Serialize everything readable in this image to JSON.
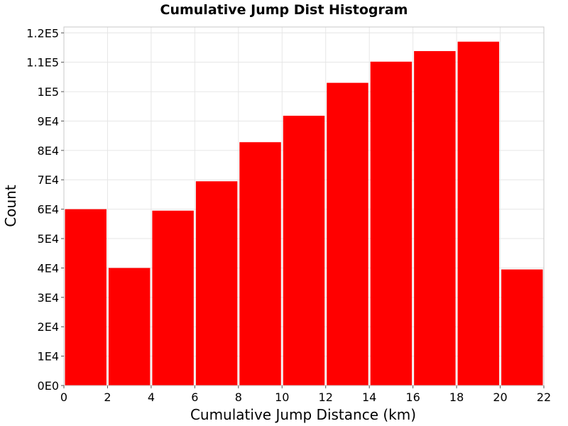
{
  "chart_data": {
    "type": "bar",
    "title": "Cumulative Jump Dist Histogram",
    "xlabel": "Cumulative Jump Distance (km)",
    "ylabel": "Count",
    "xlim": [
      0,
      22
    ],
    "ylim": [
      0,
      122000
    ],
    "bin_width": 2,
    "x_ticks": [
      0,
      2,
      4,
      6,
      8,
      10,
      12,
      14,
      16,
      18,
      20,
      22
    ],
    "x_tick_labels": [
      "0",
      "2",
      "4",
      "6",
      "8",
      "10",
      "12",
      "14",
      "16",
      "18",
      "20",
      "22"
    ],
    "y_ticks": [
      0,
      10000,
      20000,
      30000,
      40000,
      50000,
      60000,
      70000,
      80000,
      90000,
      100000,
      110000,
      120000
    ],
    "y_tick_labels": [
      "0E0",
      "1E4",
      "2E4",
      "3E4",
      "4E4",
      "5E4",
      "6E4",
      "7E4",
      "8E4",
      "9E4",
      "1E5",
      "1.1E5",
      "1.2E5"
    ],
    "bins": [
      {
        "x0": 0,
        "x1": 2,
        "value": 60000
      },
      {
        "x0": 2,
        "x1": 4,
        "value": 40000
      },
      {
        "x0": 4,
        "x1": 6,
        "value": 59500
      },
      {
        "x0": 6,
        "x1": 8,
        "value": 69500
      },
      {
        "x0": 8,
        "x1": 10,
        "value": 82800
      },
      {
        "x0": 10,
        "x1": 12,
        "value": 91800
      },
      {
        "x0": 12,
        "x1": 14,
        "value": 103000
      },
      {
        "x0": 14,
        "x1": 16,
        "value": 110200
      },
      {
        "x0": 16,
        "x1": 18,
        "value": 113800
      },
      {
        "x0": 18,
        "x1": 20,
        "value": 117000
      },
      {
        "x0": 20,
        "x1": 22,
        "value": 39500
      }
    ],
    "grid": true,
    "colors": {
      "bar": "#ff0000",
      "grid": "#e6e6e6",
      "frame": "#c8c8c8"
    }
  }
}
